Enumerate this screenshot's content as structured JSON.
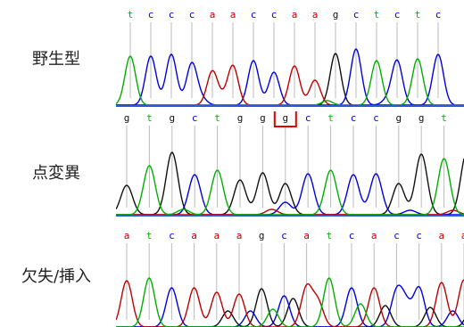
{
  "colors": {
    "a": "#c00000",
    "c": "#0000e0",
    "g": "#111111",
    "t": "#00b000",
    "baseline": "#2a5cd8",
    "tick": "#bbbbbb",
    "highlight": "#e00000"
  },
  "panels": [
    {
      "id": "wildtype",
      "label": "野生型",
      "bases": [
        "t",
        "c",
        "c",
        "c",
        "a",
        "a",
        "c",
        "c",
        "a",
        "a",
        "g",
        "c",
        "t",
        "c",
        "t",
        "c"
      ],
      "highlight_index": null
    },
    {
      "id": "point",
      "label": "点変異",
      "bases": [
        "g",
        "t",
        "g",
        "c",
        "t",
        "g",
        "g",
        "g",
        "c",
        "t",
        "c",
        "c",
        "g",
        "g",
        "t",
        "g"
      ],
      "highlight_index": 7
    },
    {
      "id": "indel",
      "label": "欠失/挿入",
      "bases": [
        "a",
        "t",
        "c",
        "a",
        "a",
        "a",
        "g",
        "c",
        "a",
        "t",
        "c",
        "a",
        "c",
        "c",
        "a",
        "a"
      ],
      "highlight_index": null
    }
  ]
}
